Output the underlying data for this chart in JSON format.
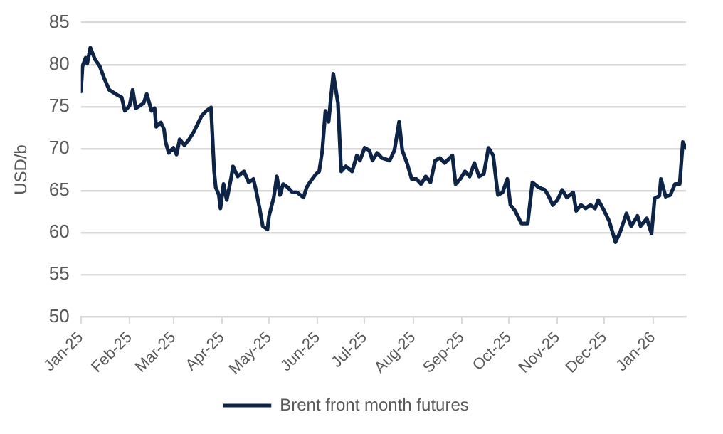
{
  "chart_data": {
    "type": "line",
    "ylabel": "USD/b",
    "xlim": [
      "2025-01-01",
      "2026-01-22"
    ],
    "xticks": [
      {
        "value": "2025-01-01",
        "label": "Jan-25"
      },
      {
        "value": "2025-02-01",
        "label": "Feb-25"
      },
      {
        "value": "2025-03-01",
        "label": "Mar-25"
      },
      {
        "value": "2025-04-01",
        "label": "Apr-25"
      },
      {
        "value": "2025-05-01",
        "label": "May-25"
      },
      {
        "value": "2025-06-01",
        "label": "Jun-25"
      },
      {
        "value": "2025-07-01",
        "label": "Jul-25"
      },
      {
        "value": "2025-08-01",
        "label": "Aug-25"
      },
      {
        "value": "2025-09-01",
        "label": "Sep-25"
      },
      {
        "value": "2025-10-01",
        "label": "Oct-25"
      },
      {
        "value": "2025-11-01",
        "label": "Nov-25"
      },
      {
        "value": "2025-12-01",
        "label": "Dec-25"
      },
      {
        "value": "2026-01-01",
        "label": "Jan-26"
      }
    ],
    "ylim": [
      50,
      85
    ],
    "yticks": [
      50,
      55,
      60,
      65,
      70,
      75,
      80,
      85
    ],
    "grid": "y",
    "legend": "bottom",
    "marker": "none",
    "line_style": "solid",
    "x": [
      "2025-01-01",
      "2025-01-02",
      "2025-01-04",
      "2025-01-05",
      "2025-01-07",
      "2025-01-10",
      "2025-01-13",
      "2025-01-16",
      "2025-01-19",
      "2025-01-24",
      "2025-01-27",
      "2025-01-29",
      "2025-02-01",
      "2025-02-03",
      "2025-02-05",
      "2025-02-10",
      "2025-02-12",
      "2025-02-15",
      "2025-02-17",
      "2025-02-18",
      "2025-02-21",
      "2025-02-23",
      "2025-02-24",
      "2025-02-26",
      "2025-03-01",
      "2025-03-03",
      "2025-03-05",
      "2025-03-08",
      "2025-03-11",
      "2025-03-14",
      "2025-03-19",
      "2025-03-22",
      "2025-03-25",
      "2025-03-27",
      "2025-03-28",
      "2025-03-30",
      "2025-03-31",
      "2025-04-02",
      "2025-04-04",
      "2025-04-05",
      "2025-04-07",
      "2025-04-08",
      "2025-04-11",
      "2025-04-15",
      "2025-04-18",
      "2025-04-21",
      "2025-04-23",
      "2025-04-25",
      "2025-04-27",
      "2025-04-30",
      "2025-05-01",
      "2025-05-04",
      "2025-05-06",
      "2025-05-08",
      "2025-05-10",
      "2025-05-13",
      "2025-05-16",
      "2025-05-19",
      "2025-05-23",
      "2025-05-25",
      "2025-05-27",
      "2025-05-31",
      "2025-06-02",
      "2025-06-04",
      "2025-06-06",
      "2025-06-08",
      "2025-06-11",
      "2025-06-14",
      "2025-06-16",
      "2025-06-19",
      "2025-06-23",
      "2025-06-26",
      "2025-06-28",
      "2025-07-01",
      "2025-07-04",
      "2025-07-06",
      "2025-07-09",
      "2025-07-12",
      "2025-07-17",
      "2025-07-20",
      "2025-07-23",
      "2025-07-25",
      "2025-07-28",
      "2025-07-31",
      "2025-08-03",
      "2025-08-06",
      "2025-08-09",
      "2025-08-12",
      "2025-08-15",
      "2025-08-18",
      "2025-08-21",
      "2025-08-26",
      "2025-08-28",
      "2025-08-31",
      "2025-09-03",
      "2025-09-06",
      "2025-09-09",
      "2025-09-12",
      "2025-09-15",
      "2025-09-18",
      "2025-09-21",
      "2025-09-24",
      "2025-09-27",
      "2025-09-30",
      "2025-10-02",
      "2025-10-05",
      "2025-10-09",
      "2025-10-13",
      "2025-10-16",
      "2025-10-20",
      "2025-10-24",
      "2025-10-26",
      "2025-10-29",
      "2025-11-01",
      "2025-11-04",
      "2025-11-07",
      "2025-11-11",
      "2025-11-13",
      "2025-11-16",
      "2025-11-19",
      "2025-11-22",
      "2025-11-25",
      "2025-11-27",
      "2025-11-30",
      "2025-12-04",
      "2025-12-08",
      "2025-12-11",
      "2025-12-15",
      "2025-12-18",
      "2025-12-22",
      "2025-12-24",
      "2025-12-28",
      "2025-12-31",
      "2026-01-02",
      "2026-01-05",
      "2026-01-06",
      "2026-01-09",
      "2026-01-12",
      "2026-01-15",
      "2026-01-18",
      "2026-01-20",
      "2026-01-22"
    ],
    "series": [
      {
        "name": "Brent front month futures",
        "color": "#0d2447",
        "values": [
          76.8,
          79.8,
          80.8,
          80.1,
          82,
          80.6,
          79.8,
          78.3,
          77,
          76.4,
          76.1,
          74.5,
          75.1,
          77,
          74.8,
          75.4,
          76.5,
          74.5,
          74.8,
          72.6,
          73.1,
          72.3,
          70.8,
          69.5,
          70.1,
          69.3,
          71.1,
          70.4,
          71.1,
          72,
          73.9,
          74.5,
          74.9,
          67.3,
          65.4,
          64.5,
          62.9,
          65.8,
          63.9,
          64.8,
          66.7,
          67.9,
          66.7,
          67.3,
          66,
          66.4,
          64.8,
          62.9,
          60.8,
          60.4,
          62,
          64.2,
          66.7,
          64.5,
          65.8,
          65.4,
          64.8,
          64.8,
          64.2,
          65.4,
          66,
          67,
          67.3,
          69.8,
          74.5,
          73.2,
          78.9,
          75.4,
          67.3,
          67.9,
          67.3,
          69.2,
          68.6,
          70.1,
          69.8,
          68.6,
          69.5,
          68.9,
          68.6,
          69.8,
          73.2,
          69.8,
          68.3,
          66.4,
          66.4,
          65.8,
          66.7,
          66,
          68.6,
          68.9,
          68.3,
          69.2,
          65.8,
          66.4,
          67.3,
          66.7,
          68.3,
          66.7,
          67,
          70.1,
          69.2,
          64.5,
          64.8,
          66.4,
          63.3,
          62.6,
          61.1,
          61.1,
          66,
          65.4,
          65.1,
          64.5,
          63.3,
          63.9,
          65.1,
          64.2,
          64.8,
          62.6,
          63.3,
          62.9,
          63.3,
          62.9,
          63.9,
          62.9,
          61.4,
          58.9,
          60.1,
          62.3,
          60.8,
          62,
          60.8,
          61.7,
          59.9,
          64.1,
          64.4,
          66.4,
          64.3,
          64.5,
          65.8,
          65.8,
          70.8,
          70.1
        ]
      }
    ]
  }
}
